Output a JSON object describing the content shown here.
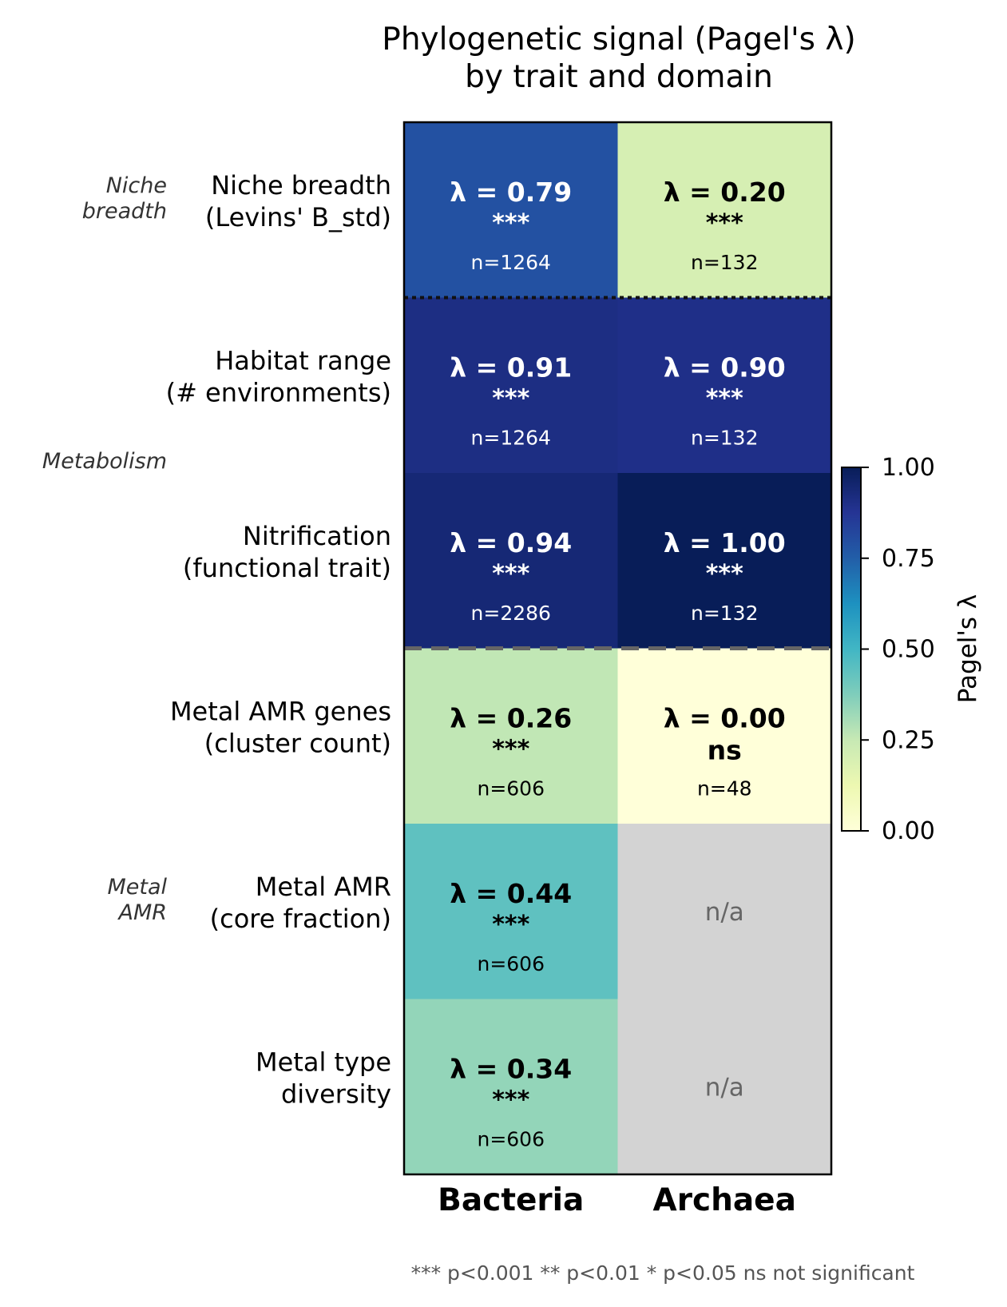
{
  "chart_data": {
    "type": "heatmap",
    "title": "Phylogenetic signal (Pagel's λ)\nby trait and domain",
    "columns": [
      "Bacteria",
      "Archaea"
    ],
    "rows": [
      "Niche breadth\n(Levins' B_std)",
      "Habitat range\n(# environments)",
      "Nitrification\n(functional trait)",
      "Metal AMR genes\n(cluster count)",
      "Metal AMR\n(core fraction)",
      "Metal type\ndiversity"
    ],
    "groups": [
      {
        "label": "Niche\nbreadth",
        "rows": [
          0
        ]
      },
      {
        "label": "Metabolism",
        "rows": [
          1,
          2
        ]
      },
      {
        "label": "Metal\nAMR",
        "rows": [
          3,
          4,
          5
        ]
      }
    ],
    "values": [
      [
        0.79,
        0.2
      ],
      [
        0.91,
        0.9
      ],
      [
        0.94,
        1.0
      ],
      [
        0.26,
        0.0
      ],
      [
        0.44,
        null
      ],
      [
        0.34,
        null
      ]
    ],
    "cell_labels": [
      [
        "λ = 0.79",
        "λ = 0.20"
      ],
      [
        "λ = 0.91",
        "λ = 0.90"
      ],
      [
        "λ = 0.94",
        "λ = 1.00"
      ],
      [
        "λ = 0.26",
        "λ = 0.00"
      ],
      [
        "λ = 0.44",
        "n/a"
      ],
      [
        "λ = 0.34",
        "n/a"
      ]
    ],
    "significance": [
      [
        "***",
        "***"
      ],
      [
        "***",
        "***"
      ],
      [
        "***",
        "***"
      ],
      [
        "***",
        "ns"
      ],
      [
        "***",
        ""
      ],
      [
        "***",
        ""
      ]
    ],
    "n": [
      [
        "n=1264",
        "n=132"
      ],
      [
        "n=1264",
        "n=132"
      ],
      [
        "n=2286",
        "n=132"
      ],
      [
        "n=606",
        "n=48"
      ],
      [
        "n=606",
        ""
      ],
      [
        "n=606",
        ""
      ]
    ],
    "colorbar": {
      "label": "Pagel's λ",
      "range": [
        0,
        1
      ],
      "ticks": [
        "0.00",
        "0.25",
        "0.50",
        "0.75",
        "1.00"
      ],
      "colormap": "YlGnBu"
    },
    "missing_color": "#d3d3d3",
    "footnote": "*** p<0.001  ** p<0.01  * p<0.05  ns not significant"
  }
}
